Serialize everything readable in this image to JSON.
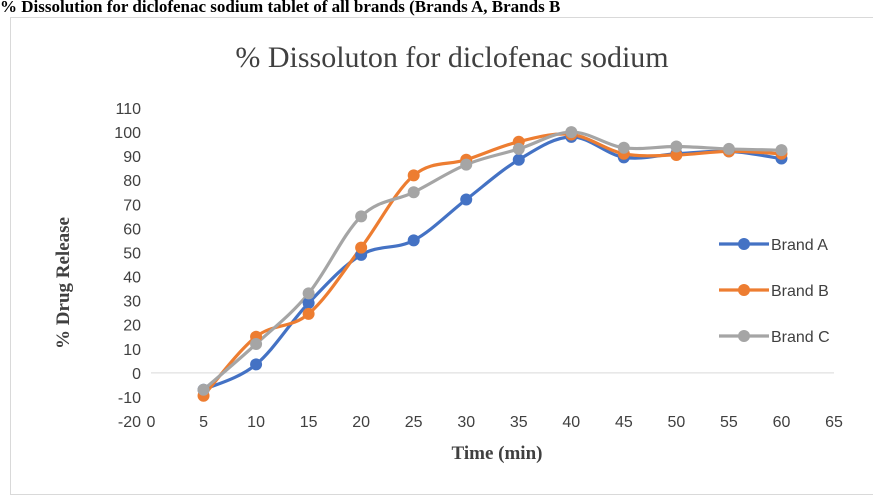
{
  "caption": "% Dissolution for diclofenac sodium tablet of all brands (Brands A, Brands B",
  "chart_data": {
    "type": "line",
    "title": "% Dissoluton for diclofenac sodium",
    "xlabel": "Time (min)",
    "ylabel": "% Drug Release",
    "xlim": [
      0,
      65
    ],
    "ylim": [
      -20,
      110
    ],
    "x_ticks": [
      0,
      5,
      10,
      15,
      20,
      25,
      30,
      35,
      40,
      45,
      50,
      55,
      60,
      65
    ],
    "y_ticks": [
      -20,
      -10,
      0,
      10,
      20,
      30,
      40,
      50,
      60,
      70,
      80,
      90,
      100,
      110
    ],
    "grid": false,
    "legend_position": "right",
    "x": [
      5,
      10,
      15,
      20,
      25,
      30,
      35,
      40,
      45,
      50,
      55,
      60
    ],
    "series": [
      {
        "name": "Brand A",
        "color": "#4472C4",
        "values": [
          -7,
          3.5,
          29,
          49,
          55,
          72,
          88.5,
          98,
          89.5,
          91,
          92,
          89
        ]
      },
      {
        "name": "Brand B",
        "color": "#ED7D31",
        "values": [
          -9.5,
          15,
          24.5,
          52,
          82,
          88.5,
          96,
          99,
          91,
          90.5,
          92,
          91
        ]
      },
      {
        "name": "Brand C",
        "color": "#A5A5A5",
        "values": [
          -7,
          12,
          33,
          65,
          75,
          86.5,
          93,
          100,
          93.5,
          94,
          93,
          92.5
        ]
      }
    ]
  }
}
